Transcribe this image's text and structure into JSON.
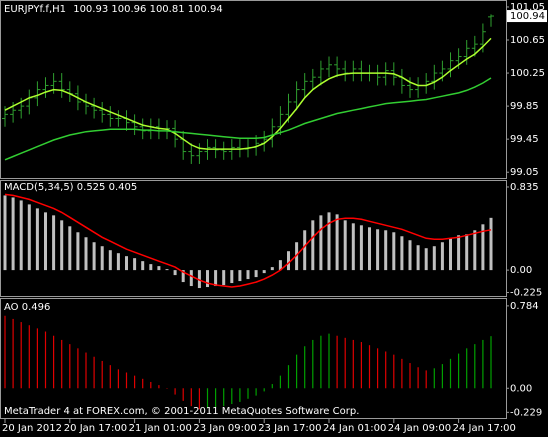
{
  "chart_data": [
    {
      "type": "ohlc",
      "title": "EURJPYf.f,H1",
      "categories": [
        "20 Jan 2012",
        null,
        null,
        null,
        null,
        null,
        null,
        null,
        "20 Jan 17:00",
        null,
        null,
        null,
        null,
        null,
        null,
        null,
        "21 Jan 01:00",
        null,
        null,
        null,
        null,
        null,
        null,
        null,
        "23 Jan 09:00",
        null,
        null,
        null,
        null,
        null,
        null,
        null,
        "23 Jan 17:00",
        null,
        null,
        null,
        null,
        null,
        null,
        null,
        "24 Jan 01:00",
        null,
        null,
        null,
        null,
        null,
        null,
        null,
        "24 Jan 09:00",
        null,
        null,
        null,
        null,
        null,
        null,
        null,
        "24 Jan 17:00",
        null,
        null,
        null,
        null
      ],
      "open": [
        99.7,
        99.75,
        99.8,
        99.85,
        99.95,
        100.05,
        100.1,
        100.15,
        100.05,
        100.0,
        99.9,
        99.85,
        99.8,
        99.75,
        99.7,
        99.7,
        99.65,
        99.6,
        99.55,
        99.6,
        99.55,
        99.58,
        99.45,
        99.3,
        99.25,
        99.3,
        99.35,
        99.32,
        99.3,
        99.35,
        99.33,
        99.35,
        99.4,
        99.45,
        99.6,
        99.75,
        99.9,
        100.05,
        100.15,
        100.2,
        100.3,
        100.35,
        100.3,
        100.25,
        100.3,
        100.25,
        100.25,
        100.2,
        100.28,
        100.2,
        100.1,
        100.05,
        100.1,
        100.15,
        100.25,
        100.3,
        100.4,
        100.45,
        100.55,
        100.6,
        100.93
      ],
      "high": [
        99.85,
        99.9,
        99.95,
        100.05,
        100.15,
        100.2,
        100.25,
        100.25,
        100.15,
        100.1,
        100.0,
        99.95,
        99.9,
        99.85,
        99.8,
        99.8,
        99.75,
        99.7,
        99.7,
        99.7,
        99.68,
        99.68,
        99.55,
        99.4,
        99.4,
        99.45,
        99.45,
        99.42,
        99.45,
        99.45,
        99.45,
        99.5,
        99.55,
        99.7,
        99.85,
        100.0,
        100.15,
        100.25,
        100.3,
        100.4,
        100.45,
        100.45,
        100.4,
        100.4,
        100.4,
        100.35,
        100.35,
        100.38,
        100.38,
        100.3,
        100.2,
        100.2,
        100.25,
        100.35,
        100.4,
        100.5,
        100.55,
        100.65,
        100.7,
        100.85,
        100.96
      ],
      "low": [
        99.6,
        99.65,
        99.7,
        99.75,
        99.85,
        99.95,
        100.0,
        99.95,
        99.9,
        99.8,
        99.75,
        99.7,
        99.65,
        99.6,
        99.6,
        99.55,
        99.5,
        99.45,
        99.45,
        99.45,
        99.45,
        99.35,
        99.2,
        99.15,
        99.15,
        99.2,
        99.22,
        99.2,
        99.2,
        99.23,
        99.23,
        99.25,
        99.3,
        99.35,
        99.5,
        99.65,
        99.8,
        99.95,
        100.05,
        100.1,
        100.2,
        100.2,
        100.15,
        100.15,
        100.15,
        100.15,
        100.1,
        100.1,
        100.1,
        100.0,
        99.95,
        99.95,
        100.0,
        100.05,
        100.15,
        100.2,
        100.3,
        100.35,
        100.45,
        100.5,
        100.81
      ],
      "close": [
        99.75,
        99.8,
        99.85,
        99.95,
        100.05,
        100.1,
        100.15,
        100.05,
        100.0,
        99.9,
        99.85,
        99.8,
        99.75,
        99.7,
        99.7,
        99.65,
        99.6,
        99.55,
        99.6,
        99.55,
        99.58,
        99.45,
        99.3,
        99.25,
        99.3,
        99.35,
        99.32,
        99.3,
        99.35,
        99.33,
        99.35,
        99.4,
        99.45,
        99.6,
        99.75,
        99.9,
        100.05,
        100.15,
        100.2,
        100.3,
        100.35,
        100.3,
        100.25,
        100.3,
        100.25,
        100.25,
        100.2,
        100.28,
        100.2,
        100.1,
        100.05,
        100.1,
        100.15,
        100.25,
        100.3,
        100.4,
        100.45,
        100.55,
        100.6,
        100.75,
        100.94
      ],
      "color": "#2f9f2f",
      "series": [
        {
          "color": "#adff2f",
          "values": [
            99.8,
            99.85,
            99.9,
            99.95,
            99.98,
            100.02,
            100.05,
            100.04,
            100.0,
            99.95,
            99.9,
            99.86,
            99.82,
            99.78,
            99.74,
            99.7,
            99.66,
            99.62,
            99.6,
            99.58,
            99.57,
            99.52,
            99.45,
            99.38,
            99.34,
            99.33,
            99.33,
            99.33,
            99.33,
            99.33,
            99.34,
            99.36,
            99.4,
            99.48,
            99.58,
            99.7,
            99.82,
            99.95,
            100.05,
            100.12,
            100.18,
            100.22,
            100.24,
            100.25,
            100.25,
            100.25,
            100.25,
            100.25,
            100.24,
            100.2,
            100.14,
            100.1,
            100.1,
            100.14,
            100.2,
            100.28,
            100.35,
            100.42,
            100.48,
            100.57,
            100.67
          ]
        },
        {
          "color": "#32cd32",
          "values": [
            99.2,
            99.24,
            99.28,
            99.32,
            99.36,
            99.4,
            99.44,
            99.47,
            99.5,
            99.52,
            99.54,
            99.55,
            99.56,
            99.57,
            99.57,
            99.57,
            99.57,
            99.56,
            99.56,
            99.55,
            99.55,
            99.54,
            99.53,
            99.52,
            99.51,
            99.5,
            99.49,
            99.48,
            99.47,
            99.46,
            99.46,
            99.46,
            99.47,
            99.5,
            99.53,
            99.56,
            99.6,
            99.64,
            99.67,
            99.7,
            99.73,
            99.76,
            99.78,
            99.8,
            99.82,
            99.84,
            99.86,
            99.88,
            99.89,
            99.9,
            99.91,
            99.92,
            99.93,
            99.95,
            99.97,
            99.99,
            100.01,
            100.04,
            100.08,
            100.13,
            100.19
          ]
        }
      ],
      "ylim": [
        98.98,
        101.11
      ],
      "yticks": [
        101.05,
        100.65,
        100.25,
        99.85,
        99.45,
        99.05
      ]
    },
    {
      "type": "bar",
      "title": "MACD(5,34,5)",
      "values": [
        0.75,
        0.73,
        0.7,
        0.66,
        0.62,
        0.58,
        0.55,
        0.5,
        0.44,
        0.38,
        0.33,
        0.28,
        0.24,
        0.2,
        0.17,
        0.14,
        0.12,
        0.09,
        0.06,
        0.04,
        0.01,
        -0.05,
        -0.12,
        -0.16,
        -0.18,
        -0.17,
        -0.16,
        -0.15,
        -0.13,
        -0.11,
        -0.09,
        -0.07,
        -0.03,
        0.03,
        0.1,
        0.19,
        0.28,
        0.4,
        0.5,
        0.55,
        0.58,
        0.56,
        0.5,
        0.47,
        0.45,
        0.43,
        0.41,
        0.4,
        0.38,
        0.34,
        0.3,
        0.25,
        0.22,
        0.24,
        0.28,
        0.32,
        0.35,
        0.36,
        0.4,
        0.46,
        0.525
      ],
      "color": "#c0c0c0",
      "series": [
        {
          "color": "#ff0000",
          "values": [
            0.76,
            0.75,
            0.73,
            0.71,
            0.68,
            0.65,
            0.62,
            0.58,
            0.53,
            0.48,
            0.43,
            0.38,
            0.33,
            0.29,
            0.25,
            0.21,
            0.18,
            0.15,
            0.12,
            0.09,
            0.06,
            0.03,
            -0.02,
            -0.06,
            -0.1,
            -0.13,
            -0.15,
            -0.16,
            -0.17,
            -0.16,
            -0.14,
            -0.12,
            -0.09,
            -0.05,
            0.0,
            0.07,
            0.15,
            0.24,
            0.33,
            0.41,
            0.47,
            0.51,
            0.52,
            0.52,
            0.51,
            0.49,
            0.47,
            0.45,
            0.43,
            0.41,
            0.38,
            0.35,
            0.32,
            0.31,
            0.31,
            0.32,
            0.33,
            0.35,
            0.37,
            0.39,
            0.405
          ]
        }
      ],
      "ylim": [
        -0.26,
        0.895
      ],
      "yticks": [
        0.835,
        {
          "value": 0,
          "label": "0.00"
        },
        -0.225
      ]
    },
    {
      "type": "bar",
      "title": "AO",
      "values": [
        0.69,
        0.66,
        0.63,
        0.6,
        0.57,
        0.54,
        0.5,
        0.46,
        0.42,
        0.38,
        0.34,
        0.3,
        0.26,
        0.22,
        0.18,
        0.15,
        0.12,
        0.09,
        0.06,
        0.03,
        0.0,
        -0.06,
        -0.12,
        -0.17,
        -0.2,
        -0.19,
        -0.18,
        -0.17,
        -0.15,
        -0.13,
        -0.1,
        -0.07,
        -0.03,
        0.04,
        0.12,
        0.22,
        0.32,
        0.4,
        0.46,
        0.5,
        0.52,
        0.5,
        0.48,
        0.46,
        0.44,
        0.41,
        0.38,
        0.35,
        0.32,
        0.28,
        0.24,
        0.2,
        0.17,
        0.19,
        0.23,
        0.28,
        0.33,
        0.38,
        0.42,
        0.46,
        0.496
      ],
      "up_color": "#00a000",
      "down_color": "#e00000",
      "ylim": [
        -0.283,
        0.84
      ],
      "yticks": [
        0.784,
        {
          "value": 0,
          "label": "0.00"
        },
        -0.229
      ]
    }
  ],
  "footer": "MetaTrader 4 at FOREX.com, © 2001-2011 MetaQuotes Software Corp."
}
